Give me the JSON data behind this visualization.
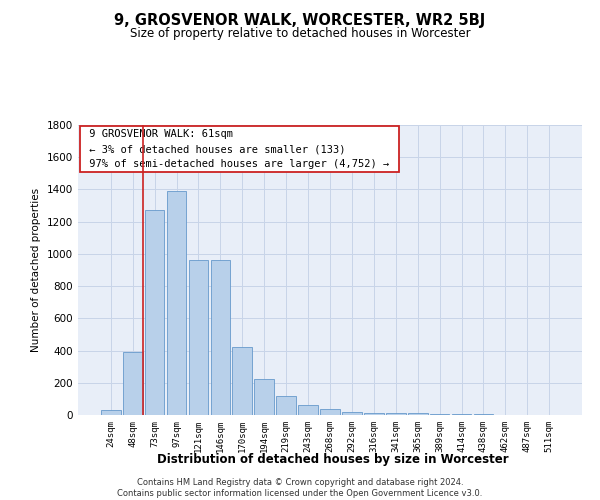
{
  "title": "9, GROSVENOR WALK, WORCESTER, WR2 5BJ",
  "subtitle": "Size of property relative to detached houses in Worcester",
  "xlabel": "Distribution of detached houses by size in Worcester",
  "ylabel": "Number of detached properties",
  "footer_line1": "Contains HM Land Registry data © Crown copyright and database right 2024.",
  "footer_line2": "Contains public sector information licensed under the Open Government Licence v3.0.",
  "categories": [
    "24sqm",
    "48sqm",
    "73sqm",
    "97sqm",
    "121sqm",
    "146sqm",
    "170sqm",
    "194sqm",
    "219sqm",
    "243sqm",
    "268sqm",
    "292sqm",
    "316sqm",
    "341sqm",
    "365sqm",
    "389sqm",
    "414sqm",
    "438sqm",
    "462sqm",
    "487sqm",
    "511sqm"
  ],
  "values": [
    30,
    390,
    1270,
    1390,
    960,
    960,
    420,
    225,
    115,
    60,
    35,
    20,
    15,
    12,
    10,
    8,
    5,
    4,
    3,
    3,
    3
  ],
  "bar_color": "#b8d0ea",
  "bar_edgecolor": "#6699cc",
  "highlight_bar_index": 1,
  "highlight_color": "#cc2222",
  "ylim": [
    0,
    1800
  ],
  "yticks": [
    0,
    200,
    400,
    600,
    800,
    1000,
    1200,
    1400,
    1600,
    1800
  ],
  "annotation_title": "9 GROSVENOR WALK: 61sqm",
  "annotation_line1": "← 3% of detached houses are smaller (133)",
  "annotation_line2": "97% of semi-detached houses are larger (4,752) →",
  "annotation_box_color": "#cc2222",
  "grid_color": "#c8d4e8",
  "bg_color": "#e8eef8"
}
